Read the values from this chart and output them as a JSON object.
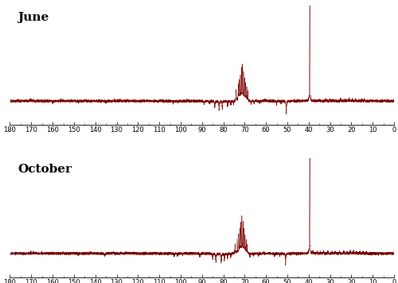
{
  "title_june": "June",
  "title_october": "October",
  "x_ticks": [
    180,
    170,
    160,
    150,
    140,
    130,
    120,
    110,
    100,
    90,
    80,
    70,
    60,
    50,
    40,
    30,
    20,
    10,
    0
  ],
  "spectrum_color": "#7B0000",
  "background_color": "#FFFFFF",
  "noise_amplitude": 0.012,
  "label_fontsize": 11,
  "tick_fontsize": 6
}
